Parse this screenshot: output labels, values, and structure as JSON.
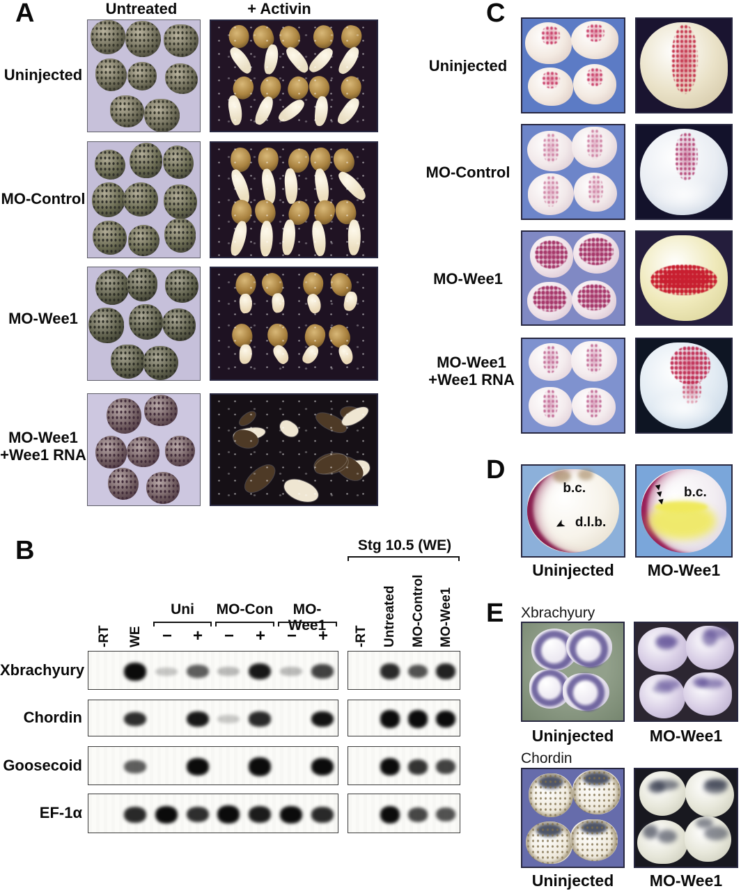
{
  "panel_a": {
    "letter": "A",
    "columns": [
      "Untreated",
      "+ Activin"
    ],
    "rows": [
      {
        "label": "Uninjected",
        "label2": "",
        "photos": {
          "untreated": {
            "kind": "spheres",
            "bg": "#c7c1da",
            "layout": [
              3,
              3,
              2
            ],
            "body": "#6e6c58",
            "dark": "#35352a",
            "light": "#b9b39e",
            "seed": 3
          },
          "activin": {
            "kind": "explants",
            "bg": "#221425",
            "n": 10,
            "head": "#ab8440",
            "tail": "#eadfc4",
            "tl": 1,
            "seed": 5
          }
        }
      },
      {
        "label": "MO-Control",
        "label2": "",
        "photos": {
          "untreated": {
            "kind": "spheres",
            "bg": "#c4bed8",
            "layout": [
              3,
              3,
              3
            ],
            "body": "#67684f",
            "dark": "#30302a",
            "light": "#b0ab96",
            "seed": 11
          },
          "activin": {
            "kind": "explants",
            "bg": "#201323",
            "n": 10,
            "head": "#a98240",
            "tail": "#ecdfc0",
            "tl": 1.25,
            "seed": 9
          }
        }
      },
      {
        "label": "MO-Wee1",
        "label2": "",
        "photos": {
          "untreated": {
            "kind": "spheres",
            "bg": "#c6c0da",
            "layout": [
              3,
              3,
              2
            ],
            "body": "#5d5e4a",
            "dark": "#2b2c24",
            "light": "#a9a694",
            "seed": 19
          },
          "activin": {
            "kind": "explants",
            "bg": "#1e1222",
            "n": 8,
            "head": "#a67e3c",
            "tail": "#ead9b8",
            "tl": 0.4,
            "seed": 13
          }
        }
      },
      {
        "label": "MO-Wee1",
        "label2": "+Wee1 RNA",
        "photos": {
          "untreated": {
            "kind": "spheres",
            "bg": "#cdc7e0",
            "layout": [
              2,
              3,
              2
            ],
            "body": "#6e5a5e",
            "dark": "#402a38",
            "light": "#b8a8a8",
            "seed": 23
          },
          "activin": {
            "kind": "fragments",
            "bg": "#161016",
            "n": 14,
            "colA": "#4e3a26",
            "colB": "#efe6d2",
            "seed": 31
          }
        }
      }
    ]
  },
  "panel_b": {
    "letter": "B",
    "gene_labels": [
      "Xbrachyury",
      "Chordin",
      "Goosecoid",
      "EF-1α"
    ],
    "left_gel": {
      "lane_labels": [
        "-RT",
        "WE"
      ],
      "groups": [
        "Uni",
        "MO-Con",
        "MO-Wee1"
      ],
      "pair": [
        "−",
        "+"
      ],
      "bands": {
        "Xbrachyury": [
          0,
          0.95,
          0.07,
          0.5,
          0.12,
          0.8,
          0.12,
          0.62
        ],
        "Chordin": [
          0,
          0.7,
          0.0,
          0.8,
          0.06,
          0.72,
          0.0,
          0.82
        ],
        "Goosecoid": [
          0,
          0.5,
          0.0,
          0.85,
          0.0,
          0.98,
          0.0,
          0.9
        ],
        "EF-1α": [
          0,
          0.72,
          0.85,
          0.7,
          0.88,
          0.78,
          0.85,
          0.72
        ]
      }
    },
    "right_gel": {
      "header": "Stg 10.5 (WE)",
      "lane_labels": [
        "-RT",
        "Untreated",
        "MO-Control",
        "MO-Wee1"
      ],
      "bands": {
        "Xbrachyury": [
          0,
          0.72,
          0.55,
          0.75
        ],
        "Chordin": [
          0,
          0.98,
          0.98,
          0.93
        ],
        "Goosecoid": [
          0,
          0.85,
          0.68,
          0.62
        ],
        "EF-1α": [
          0,
          0.85,
          0.6,
          0.55
        ]
      }
    }
  },
  "panel_c": {
    "letter": "C",
    "rows": [
      {
        "label": "Uninjected",
        "label2": "",
        "photos": {
          "group": {
            "kind": "stained4",
            "bg": "#5c7bc5",
            "body": "#f3eae2",
            "shade": "#d9c4bc",
            "stain": "#c22555",
            "pattern": "spot",
            "inten": 0.85,
            "seed": 41
          },
          "closeup": {
            "kind": "closeup",
            "bg": "#1a1430",
            "body": "#eae2c8",
            "shade": "#cfc2a0",
            "stain": "#c32f48",
            "pattern": "streak-v",
            "seed": 61
          }
        }
      },
      {
        "label": "MO-Control",
        "label2": "",
        "photos": {
          "group": {
            "kind": "stained4",
            "bg": "#6d85c9",
            "body": "#f2e9ea",
            "shade": "#d6c2cc",
            "stain": "#b53c72",
            "pattern": "streak",
            "inten": 0.6,
            "seed": 43
          },
          "closeup": {
            "kind": "closeup",
            "bg": "#13122b",
            "body": "#e9edf3",
            "shade": "#c2cede",
            "stain": "#b03a6e",
            "pattern": "streak-v-short",
            "seed": 67
          }
        }
      },
      {
        "label": "MO-Wee1",
        "label2": "",
        "photos": {
          "group": {
            "kind": "stained4",
            "bg": "#8089c4",
            "body": "#f0e4ea",
            "shade": "#d4bccb",
            "stain": "#a22c62",
            "pattern": "patch",
            "inten": 0.95,
            "seed": 47
          },
          "closeup": {
            "kind": "closeup",
            "bg": "#241d3c",
            "body": "#efe9ba",
            "shade": "#d6cf92",
            "stain": "#c81f30",
            "pattern": "band-h",
            "seed": 71
          }
        }
      },
      {
        "label": "MO-Wee1",
        "label2": "+Wee1 RNA",
        "photos": {
          "group": {
            "kind": "stained4",
            "bg": "#7f92cf",
            "body": "#f4ecee",
            "shade": "#dcc8d2",
            "stain": "#ad3570",
            "pattern": "streak",
            "inten": 0.7,
            "seed": 53
          },
          "closeup": {
            "kind": "closeup",
            "bg": "#0e1523",
            "body": "#e2ebf3",
            "shade": "#bfd0e2",
            "stain": "#c02b52",
            "pattern": "patch-top",
            "seed": 73
          }
        }
      }
    ]
  },
  "panel_d": {
    "letter": "D",
    "icons": {
      "arrow": "➤",
      "arrowhead": "▼"
    },
    "images": [
      {
        "caption": "Uninjected",
        "annotations": {
          "bc": "b.c.",
          "dlb": "d.l.b."
        },
        "photo": {
          "kind": "section",
          "bg": "#8cb0da",
          "body": "#f7f3ea",
          "shade": "#ded5c2",
          "crescent": "#8a2050",
          "smudge": "#9a7a50",
          "seed": 81
        }
      },
      {
        "caption": "MO-Wee1",
        "annotations": {
          "bc": "b.c."
        },
        "photo": {
          "kind": "section",
          "bg": "#7aa6da",
          "body": "#f2edf2",
          "shade": "#d8cfe0",
          "crescent": "#992058",
          "yellow": "#efe95e",
          "seed": 83
        }
      }
    ]
  },
  "panel_e": {
    "letter": "E",
    "sections": [
      {
        "title": "Xbrachyury",
        "images": [
          {
            "caption": "Uninjected",
            "photo": {
              "kind": "rings",
              "bg": "#92a08b",
              "bg2": "#76866f",
              "body": "#eae6f0",
              "shade": "#c9c2d8",
              "stain": "#564a8e",
              "seed": 91
            }
          },
          {
            "caption": "MO-Wee1",
            "photo": {
              "kind": "blotched",
              "bg": "#2c2631",
              "body": "#d9cfe6",
              "shade": "#b3a6c8",
              "stain": "#5f4f96",
              "seed": 93
            }
          }
        ]
      },
      {
        "title": "Chordin",
        "images": [
          {
            "caption": "Uninjected",
            "photo": {
              "kind": "domed",
              "bg": "#666cab",
              "body": "#f1ece0",
              "shade": "#d4ccb8",
              "stain": "#323a50",
              "rim": "#7e6e4a",
              "seed": 97
            }
          },
          {
            "caption": "MO-Wee1",
            "photo": {
              "kind": "blotched",
              "bg": "#18181f",
              "body": "#e7e7da",
              "shade": "#c6c6b4",
              "stain": "#3c4152",
              "seed": 99
            }
          }
        ]
      }
    ]
  }
}
